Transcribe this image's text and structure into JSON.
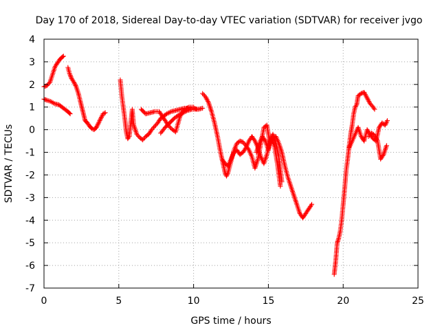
{
  "chart_data": {
    "type": "scatter",
    "title": "Day 170 of 2018, Sidereal Day-to-day VTEC variation (SDTVAR) for receiver jvgo",
    "xlabel": "GPS time / hours",
    "ylabel": "SDTVAR / TECUs",
    "xlim": [
      0,
      25
    ],
    "ylim": [
      -7,
      4
    ],
    "xticks": [
      0,
      5,
      10,
      15,
      20,
      25
    ],
    "yticks": [
      -7,
      -6,
      -5,
      -4,
      -3,
      -2,
      -1,
      0,
      1,
      2,
      3,
      4
    ],
    "grid": true,
    "marker": "+",
    "color": "#ff0000",
    "series": [
      {
        "name": "seg1",
        "x": [
          0.0,
          0.2,
          0.4,
          0.6,
          0.75,
          0.9,
          1.05,
          1.2,
          1.3
        ],
        "y": [
          1.9,
          1.95,
          2.1,
          2.5,
          2.8,
          2.95,
          3.1,
          3.2,
          3.25
        ]
      },
      {
        "name": "seg2",
        "x": [
          0.0,
          0.2,
          0.45,
          0.7,
          1.0,
          1.2,
          1.4,
          1.6,
          1.75
        ],
        "y": [
          1.35,
          1.3,
          1.25,
          1.15,
          1.1,
          1.0,
          0.9,
          0.8,
          0.7
        ]
      },
      {
        "name": "seg3",
        "x": [
          1.6,
          1.7,
          1.85,
          2.0,
          2.15,
          2.3,
          2.45,
          2.6,
          2.75,
          2.9,
          3.05,
          3.2,
          3.35,
          3.5,
          3.65,
          3.8,
          3.95,
          4.1
        ],
        "y": [
          2.75,
          2.5,
          2.25,
          2.1,
          1.9,
          1.6,
          1.2,
          0.8,
          0.4,
          0.3,
          0.15,
          0.05,
          0.0,
          0.1,
          0.3,
          0.5,
          0.7,
          0.75
        ]
      },
      {
        "name": "seg4",
        "x": [
          5.1,
          5.2,
          5.3,
          5.4,
          5.5,
          5.6,
          5.7,
          5.8,
          5.9,
          6.0,
          6.2,
          6.4,
          6.6,
          6.8,
          7.0,
          7.2,
          7.4,
          7.6,
          7.8,
          8.0,
          8.2,
          8.5,
          8.8,
          9.1,
          9.4,
          9.7,
          10.0,
          10.3,
          10.6
        ],
        "y": [
          2.2,
          1.5,
          1.0,
          0.5,
          -0.1,
          -0.4,
          -0.3,
          0.3,
          0.9,
          0.2,
          -0.2,
          -0.35,
          -0.45,
          -0.3,
          -0.2,
          0.0,
          0.15,
          0.3,
          0.5,
          0.6,
          0.7,
          0.8,
          0.85,
          0.9,
          0.95,
          0.95,
          0.95,
          0.9,
          0.95
        ]
      },
      {
        "name": "seg5",
        "x": [
          6.5,
          6.8,
          7.1,
          7.4,
          7.7,
          7.9,
          8.1,
          8.3,
          8.5,
          8.8,
          9.1,
          9.4,
          9.7,
          10.0
        ],
        "y": [
          0.9,
          0.7,
          0.75,
          0.8,
          0.8,
          0.6,
          0.4,
          0.2,
          0.05,
          -0.1,
          0.6,
          0.9,
          1.0,
          1.0
        ]
      },
      {
        "name": "seg6",
        "x": [
          7.8,
          8.1,
          8.4,
          8.7,
          9.0,
          9.3,
          9.6,
          9.9,
          10.2
        ],
        "y": [
          -0.15,
          0.1,
          0.3,
          0.5,
          0.65,
          0.75,
          0.85,
          0.9,
          0.9
        ]
      },
      {
        "name": "seg7",
        "x": [
          10.6,
          10.8,
          11.0,
          11.2,
          11.4,
          11.6,
          11.8,
          12.0,
          12.1,
          12.2,
          12.3,
          12.5,
          12.7,
          12.9,
          13.1,
          13.3,
          13.5,
          13.7,
          13.9,
          14.1,
          14.3,
          14.5,
          14.7,
          14.9,
          15.1,
          15.3,
          15.5,
          15.7,
          15.9,
          16.1,
          16.3,
          16.5,
          16.7,
          16.9,
          17.1,
          17.3,
          17.5,
          17.7,
          17.9
        ],
        "y": [
          1.6,
          1.45,
          1.2,
          0.8,
          0.3,
          -0.3,
          -1.0,
          -1.6,
          -1.9,
          -2.05,
          -1.9,
          -1.4,
          -0.9,
          -0.6,
          -0.5,
          -0.55,
          -0.7,
          -0.9,
          -1.2,
          -1.7,
          -1.3,
          -0.6,
          0.1,
          0.2,
          -0.6,
          -0.4,
          -0.3,
          -0.6,
          -1.0,
          -1.6,
          -2.1,
          -2.5,
          -2.9,
          -3.3,
          -3.7,
          -3.9,
          -3.7,
          -3.5,
          -3.3
        ]
      },
      {
        "name": "seg8",
        "x": [
          11.9,
          12.1,
          12.3,
          12.5,
          12.7,
          12.9,
          13.1,
          13.3,
          13.5,
          13.7,
          13.9,
          14.1,
          14.3,
          14.5,
          14.7,
          14.9,
          15.1,
          15.3,
          15.5,
          15.7,
          15.9
        ],
        "y": [
          -1.3,
          -1.5,
          -1.6,
          -1.3,
          -1.0,
          -0.9,
          -1.1,
          -1.0,
          -0.8,
          -0.5,
          -0.3,
          -0.5,
          -0.8,
          -1.2,
          -1.5,
          -1.1,
          -0.5,
          -0.2,
          -0.6,
          -1.2,
          -2.3
        ]
      },
      {
        "name": "seg9",
        "x": [
          14.2,
          14.4,
          14.6,
          14.8,
          15.0,
          15.2,
          15.4,
          15.6,
          15.8
        ],
        "y": [
          -1.0,
          -0.6,
          -0.3,
          -0.5,
          -0.9,
          -0.4,
          -0.7,
          -1.5,
          -2.5
        ]
      },
      {
        "name": "seg10",
        "x": [
          19.4,
          19.5,
          19.6,
          19.7,
          19.8,
          19.9,
          20.0,
          20.1,
          20.2,
          20.3,
          20.4,
          20.5,
          20.6,
          20.7,
          20.8,
          20.9,
          21.0,
          21.2,
          21.4,
          21.6,
          21.8,
          22.0,
          22.1
        ],
        "y": [
          -6.4,
          -5.8,
          -5.0,
          -4.8,
          -4.5,
          -4.0,
          -3.3,
          -2.6,
          -1.8,
          -1.3,
          -0.7,
          -0.2,
          0.2,
          0.7,
          1.0,
          1.1,
          1.5,
          1.6,
          1.65,
          1.4,
          1.15,
          1.0,
          0.9
        ]
      },
      {
        "name": "seg11",
        "x": [
          20.4,
          20.6,
          20.8,
          21.0,
          21.2,
          21.4,
          21.6,
          21.8,
          22.0,
          22.2,
          22.4,
          22.6,
          22.8,
          22.95
        ],
        "y": [
          -0.8,
          -0.5,
          -0.2,
          0.1,
          -0.3,
          -0.5,
          0.0,
          -0.2,
          -0.4,
          -0.5,
          0.1,
          0.3,
          0.2,
          0.4
        ]
      },
      {
        "name": "seg12",
        "x": [
          21.7,
          21.9,
          22.1,
          22.3,
          22.5,
          22.7,
          22.9
        ],
        "y": [
          -0.3,
          -0.15,
          -0.25,
          -0.5,
          -1.3,
          -1.1,
          -0.7
        ]
      }
    ]
  }
}
